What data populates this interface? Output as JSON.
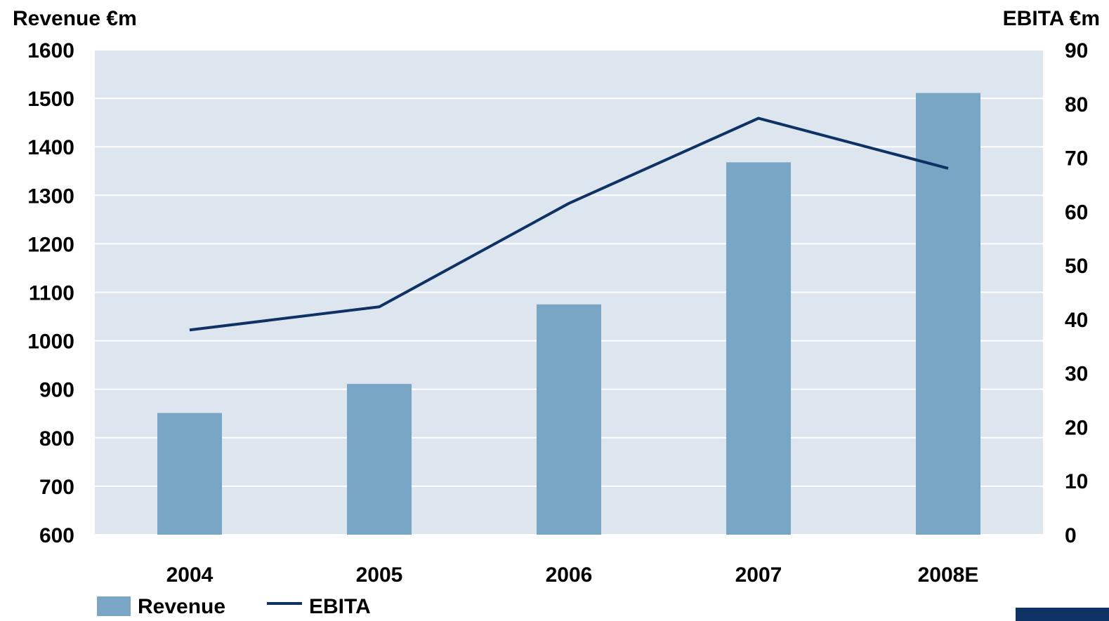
{
  "chart_data": {
    "type": "bar",
    "categories": [
      "2004",
      "2005",
      "2006",
      "2007",
      "2008E"
    ],
    "y_left": {
      "label": "Revenue €m",
      "range": [
        600,
        1600
      ],
      "ticks": [
        "600",
        "700",
        "800",
        "900",
        "1000",
        "1100",
        "1200",
        "1300",
        "1400",
        "1500",
        "1600"
      ]
    },
    "y_right": {
      "label": "EBITA €m",
      "range": [
        0,
        90
      ],
      "ticks": [
        "0",
        "10",
        "20",
        "30",
        "40",
        "50",
        "60",
        "70",
        "80",
        "90"
      ]
    },
    "series": [
      {
        "name": "Revenue",
        "type": "bar",
        "axis": "left",
        "values": [
          851,
          911,
          1075,
          1368,
          1511
        ],
        "color": "#7aa6c6"
      },
      {
        "name": "EBITA",
        "type": "line",
        "axis": "right",
        "values": [
          38,
          42.3,
          61.5,
          77.3,
          68
        ],
        "color": "#0d3263"
      }
    ],
    "plot_background": "#dde5ef",
    "grid": true,
    "legend_position": "bottom-left"
  }
}
